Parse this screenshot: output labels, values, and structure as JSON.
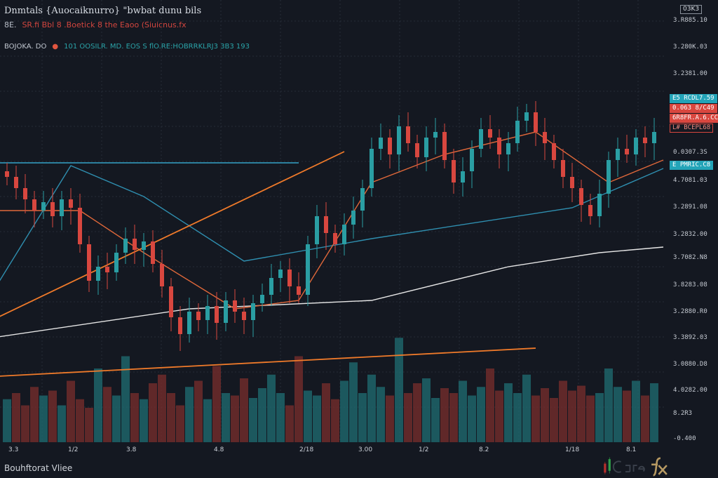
{
  "header": {
    "title": "Dnmtals {Auocaiknurro} \"bwbat dunu bils",
    "subtitle_prefix": "8E.",
    "subtitle": "SR.fi Bbl 8 .Boetick 8 the Eaoo (Siuicnus.fx",
    "indicator_prefix": "BOJOKA. DO",
    "indicator_dot": "●",
    "indicator_text": "101 OOSILR. MD. EOS S flO.RE:HOBRRKLRJ3 3B3 193"
  },
  "top_right_box": "03K3",
  "y_axis_labels": [
    "3.R885.10",
    "3.280K.03",
    "3.2381.00",
    "0.0307.3S",
    "4.7081.03",
    "3.2891.08",
    "3.2832.00",
    "3.7082.N8",
    "3.8283.08",
    "3.2880.R0",
    "3.3892.03",
    "3.0880.D8",
    "4.0282.00",
    "8.2R3",
    "-0.400"
  ],
  "price_tags": [
    {
      "text": "E5 RCDL7.59",
      "style": "cyan"
    },
    {
      "text": "0.063 8/C49",
      "style": "red"
    },
    {
      "text": "6R8FR.A.6.CCL",
      "style": "red"
    },
    {
      "text": "L# BCEPL68",
      "style": "red-outline"
    },
    {
      "text": "E PMRIC.C8",
      "style": "cyan"
    }
  ],
  "x_axis_labels": [
    "3.3",
    "1/2",
    "3.8",
    "4.8",
    "2/18",
    "3.00",
    "1/2",
    "8.2",
    "1/18",
    "8.1"
  ],
  "footer": "Bouhftorat Vliee",
  "logo_text": "Carefx",
  "colors": {
    "background": "#141821",
    "up": "#2a9ea3",
    "down": "#d8473f",
    "ma_white": "#e6e6e6",
    "ma_blue": "#2f8fb0",
    "ma_orange": "#e0683a",
    "trend": "#ef7a2a",
    "grid": "#262c38"
  },
  "chart_data": {
    "type": "candlestick",
    "ylim": [
      0,
      110
    ],
    "grid": true,
    "closes": [
      72,
      68,
      64,
      60,
      63,
      58,
      64,
      61,
      48,
      35,
      40,
      38,
      45,
      50,
      46,
      49,
      41,
      33,
      22,
      16,
      24,
      21,
      26,
      20,
      28,
      24,
      21,
      27,
      30,
      36,
      39,
      33,
      30,
      48,
      58,
      52,
      48,
      55,
      60,
      68,
      82,
      86,
      80,
      90,
      84,
      79,
      86,
      88,
      78,
      70,
      74,
      82,
      89,
      86,
      80,
      84,
      92,
      95,
      88,
      84,
      78,
      72,
      68,
      62,
      58,
      66,
      78,
      82,
      80,
      86,
      84,
      88
    ],
    "volume": {
      "ylim": [
        0,
        100
      ],
      "values": [
        35,
        40,
        30,
        45,
        38,
        42,
        30,
        50,
        35,
        28,
        60,
        45,
        38,
        70,
        40,
        35,
        48,
        55,
        40,
        30,
        45,
        50,
        35,
        62,
        40,
        38,
        52,
        36,
        44,
        55,
        40,
        30,
        70,
        42,
        38,
        48,
        35,
        50,
        65,
        40,
        55,
        45,
        38,
        85,
        40,
        48,
        52,
        36,
        44,
        40,
        50,
        38,
        45,
        60,
        42,
        48,
        40,
        55,
        38,
        44,
        36,
        50,
        42,
        46,
        38,
        40,
        60,
        45,
        42,
        50,
        38,
        48
      ]
    },
    "overlays": [
      {
        "kind": "ma",
        "color": "ma_white",
        "points": [
          [
            -1,
            15
          ],
          [
            20,
            25
          ],
          [
            40,
            28
          ],
          [
            55,
            40
          ],
          [
            65,
            45
          ],
          [
            72,
            47
          ]
        ]
      },
      {
        "kind": "ma",
        "color": "ma_blue",
        "points": [
          [
            -1,
            34
          ],
          [
            7,
            76
          ],
          [
            15,
            65
          ],
          [
            26,
            42
          ],
          [
            40,
            50
          ],
          [
            62,
            61
          ],
          [
            72,
            75
          ]
        ]
      },
      {
        "kind": "ma",
        "color": "ma_orange",
        "points": [
          [
            -1,
            60
          ],
          [
            8,
            60
          ],
          [
            15,
            45
          ],
          [
            25,
            25
          ],
          [
            32,
            28
          ],
          [
            40,
            70
          ],
          [
            48,
            80
          ],
          [
            58,
            88
          ],
          [
            66,
            70
          ],
          [
            72,
            78
          ]
        ]
      },
      {
        "kind": "trend",
        "color": "trend",
        "points": [
          [
            -1,
            22
          ],
          [
            37,
            81
          ]
        ]
      },
      {
        "kind": "trend",
        "color": "ma_blue",
        "points": [
          [
            -1,
            77
          ],
          [
            32,
            77
          ]
        ]
      },
      {
        "kind": "trend",
        "color": "trend",
        "points": [
          [
            -1,
            1
          ],
          [
            58,
            11
          ]
        ]
      }
    ]
  }
}
